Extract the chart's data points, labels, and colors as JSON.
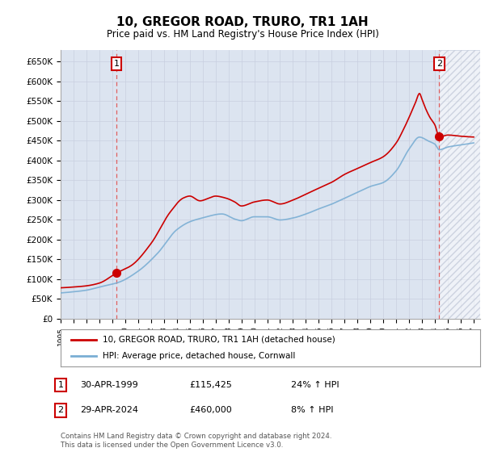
{
  "title": "10, GREGOR ROAD, TRURO, TR1 1AH",
  "subtitle": "Price paid vs. HM Land Registry's House Price Index (HPI)",
  "ylim": [
    0,
    680000
  ],
  "xlim_start": 1995.0,
  "xlim_end": 2027.5,
  "background_color": "#ffffff",
  "grid_color": "#c8cfe0",
  "plot_bg_color": "#dce4f0",
  "hpi_color": "#7aaed4",
  "price_color": "#cc0000",
  "sale1_value": 115425,
  "sale1_year": 1999.33,
  "sale2_value": 460000,
  "sale2_year": 2024.33,
  "sale1_date": "30-APR-1999",
  "sale1_price": "£115,425",
  "sale1_hpi": "24% ↑ HPI",
  "sale2_date": "29-APR-2024",
  "sale2_price": "£460,000",
  "sale2_hpi": "8% ↑ HPI",
  "legend_line1": "10, GREGOR ROAD, TRURO, TR1 1AH (detached house)",
  "legend_line2": "HPI: Average price, detached house, Cornwall",
  "footnote": "Contains HM Land Registry data © Crown copyright and database right 2024.\nThis data is licensed under the Open Government Licence v3.0.",
  "label1": "1",
  "label2": "2",
  "hatched_region_start": 2024.33,
  "hatched_region_end": 2027.5
}
